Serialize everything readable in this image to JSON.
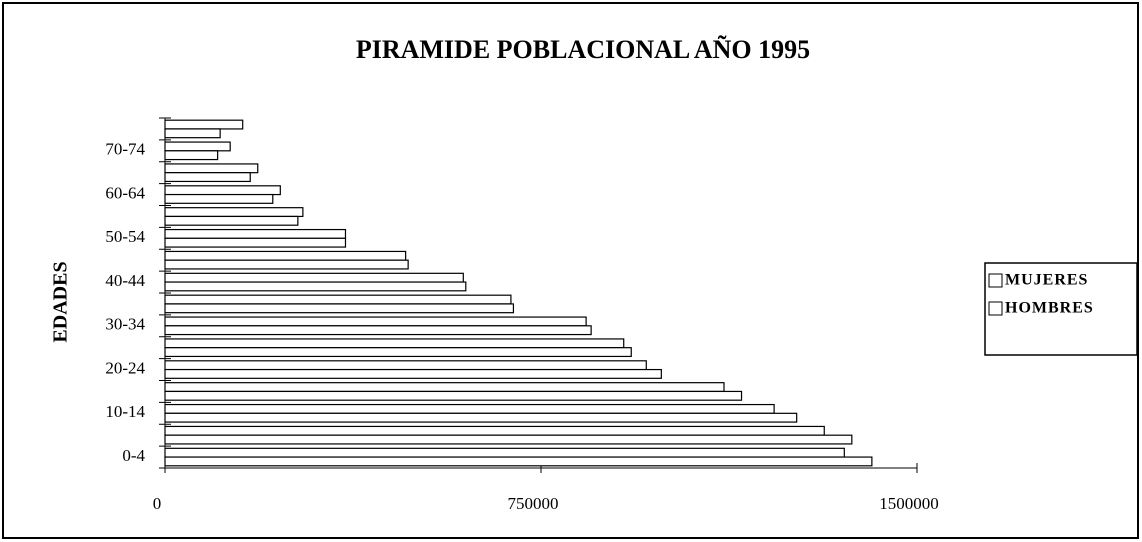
{
  "chart_data": {
    "type": "bar",
    "orientation": "horizontal",
    "title": "PIRAMIDE POBLACIONAL AÑO 1995",
    "y_label": "EDADES",
    "categories": [
      "0-4",
      null,
      "10-14",
      null,
      "20-24",
      null,
      "30-34",
      null,
      "40-44",
      null,
      "50-54",
      null,
      "60-64",
      null,
      "70-74",
      null
    ],
    "series": [
      {
        "name": "MUJERES",
        "color": "#ffffff",
        "values": [
          1355000,
          1315000,
          1215000,
          1115000,
          960000,
          915000,
          840000,
          690000,
          595000,
          480000,
          360000,
          275000,
          230000,
          185000,
          130000,
          155000
        ]
      },
      {
        "name": "HOMBRES",
        "color": "#ffffff",
        "values": [
          1410000,
          1370000,
          1260000,
          1150000,
          990000,
          930000,
          850000,
          695000,
          600000,
          485000,
          360000,
          265000,
          215000,
          170000,
          105000,
          110000
        ]
      }
    ],
    "xlim": [
      0,
      1500000
    ],
    "xticks": [
      0,
      750000,
      1500000
    ],
    "legend": "right"
  }
}
